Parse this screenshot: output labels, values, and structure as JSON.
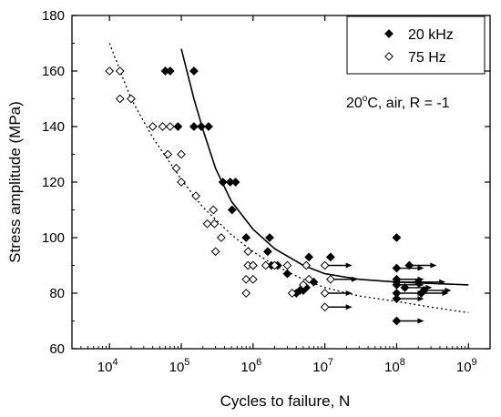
{
  "chart_data": {
    "type": "scatter",
    "xlabel": "Cycles to failure, N",
    "ylabel": "Stress amplitude (MPa)",
    "x_scale": "log",
    "xlim": [
      3000,
      2000000000
    ],
    "ylim": [
      60,
      180
    ],
    "x_ticks": [
      {
        "value": 10000,
        "base": "10",
        "exp": "4"
      },
      {
        "value": 100000,
        "base": "10",
        "exp": "5"
      },
      {
        "value": 1000000,
        "base": "10",
        "exp": "6"
      },
      {
        "value": 10000000,
        "base": "10",
        "exp": "7"
      },
      {
        "value": 100000000,
        "base": "10",
        "exp": "8"
      },
      {
        "value": 1000000000,
        "base": "10",
        "exp": "9"
      }
    ],
    "y_ticks": [
      60,
      80,
      100,
      120,
      140,
      160,
      180
    ],
    "grid": false,
    "legend_position": "top-right",
    "annotation": {
      "main": "20",
      "sup": "o",
      "rest": "C, air, R = -1"
    },
    "series": [
      {
        "name": "20 kHz",
        "marker": "filled-diamond",
        "color": "#000000",
        "points": [
          [
            60000,
            160
          ],
          [
            70000,
            160
          ],
          [
            150000,
            160
          ],
          [
            90000,
            140
          ],
          [
            150000,
            140
          ],
          [
            190000,
            140
          ],
          [
            240000,
            140
          ],
          [
            380000,
            120
          ],
          [
            480000,
            120
          ],
          [
            570000,
            120
          ],
          [
            510000,
            110
          ],
          [
            800000,
            100
          ],
          [
            1700000,
            100
          ],
          [
            1000000,
            90
          ],
          [
            1800000,
            90
          ],
          [
            2200000,
            90
          ],
          [
            1600000,
            95
          ],
          [
            3000000,
            87
          ],
          [
            6000000,
            93
          ],
          [
            12000000,
            93
          ],
          [
            4000000,
            80
          ],
          [
            4500000,
            81
          ],
          [
            5000000,
            81
          ],
          [
            5500000,
            82
          ],
          [
            7000000,
            84
          ],
          [
            100000000,
            100
          ]
        ],
        "runouts": [
          [
            100000000,
            89
          ],
          [
            100000000,
            85
          ],
          [
            100000000,
            84
          ],
          [
            100000000,
            83
          ],
          [
            100000000,
            80
          ],
          [
            100000000,
            78
          ],
          [
            100000000,
            70
          ],
          [
            130000000,
            82
          ],
          [
            150000000,
            90
          ],
          [
            200000000,
            84
          ],
          [
            220000000,
            80
          ],
          [
            240000000,
            81
          ]
        ]
      },
      {
        "name": "75 Hz",
        "marker": "open-diamond",
        "color": "#000000",
        "points": [
          [
            10000,
            160
          ],
          [
            14000,
            160
          ],
          [
            14000,
            150
          ],
          [
            20000,
            150
          ],
          [
            40000,
            140
          ],
          [
            55000,
            140
          ],
          [
            70000,
            140
          ],
          [
            65000,
            130
          ],
          [
            100000,
            130
          ],
          [
            85000,
            125
          ],
          [
            100000,
            120
          ],
          [
            160000,
            115
          ],
          [
            280000,
            110
          ],
          [
            290000,
            105
          ],
          [
            360000,
            100
          ],
          [
            300000,
            95
          ],
          [
            230000,
            105
          ],
          [
            850000,
            95
          ],
          [
            850000,
            90
          ],
          [
            1000000,
            90
          ],
          [
            1500000,
            90
          ],
          [
            2000000,
            90
          ],
          [
            3000000,
            90
          ],
          [
            800000,
            85
          ],
          [
            1000000,
            85
          ],
          [
            800000,
            80
          ],
          [
            3500000,
            80
          ],
          [
            5500000,
            90
          ],
          [
            6000000,
            85
          ],
          [
            5000000,
            83
          ]
        ],
        "runouts": [
          [
            10000000,
            90
          ],
          [
            12000000,
            85
          ],
          [
            10000000,
            80
          ],
          [
            10000000,
            75
          ]
        ]
      }
    ],
    "fit_lines": [
      {
        "series": "20 kHz",
        "style": "solid",
        "points": [
          [
            100000,
            168
          ],
          [
            150000,
            150
          ],
          [
            200000,
            139
          ],
          [
            300000,
            125
          ],
          [
            500000,
            113
          ],
          [
            1000000,
            103
          ],
          [
            2000000,
            96
          ],
          [
            5000000,
            90
          ],
          [
            10000000,
            87
          ],
          [
            30000000,
            85
          ],
          [
            100000000,
            84
          ],
          [
            1000000000,
            83
          ]
        ]
      },
      {
        "series": "75 Hz",
        "style": "dotted",
        "points": [
          [
            10000,
            170
          ],
          [
            20000,
            150
          ],
          [
            40000,
            136
          ],
          [
            100000,
            121
          ],
          [
            200000,
            111
          ],
          [
            500000,
            101
          ],
          [
            1000000,
            95
          ],
          [
            2000000,
            90
          ],
          [
            5000000,
            85
          ],
          [
            10000000,
            82
          ],
          [
            30000000,
            79
          ],
          [
            100000000,
            77
          ],
          [
            300000000,
            75
          ],
          [
            1000000000,
            73
          ]
        ]
      }
    ]
  }
}
